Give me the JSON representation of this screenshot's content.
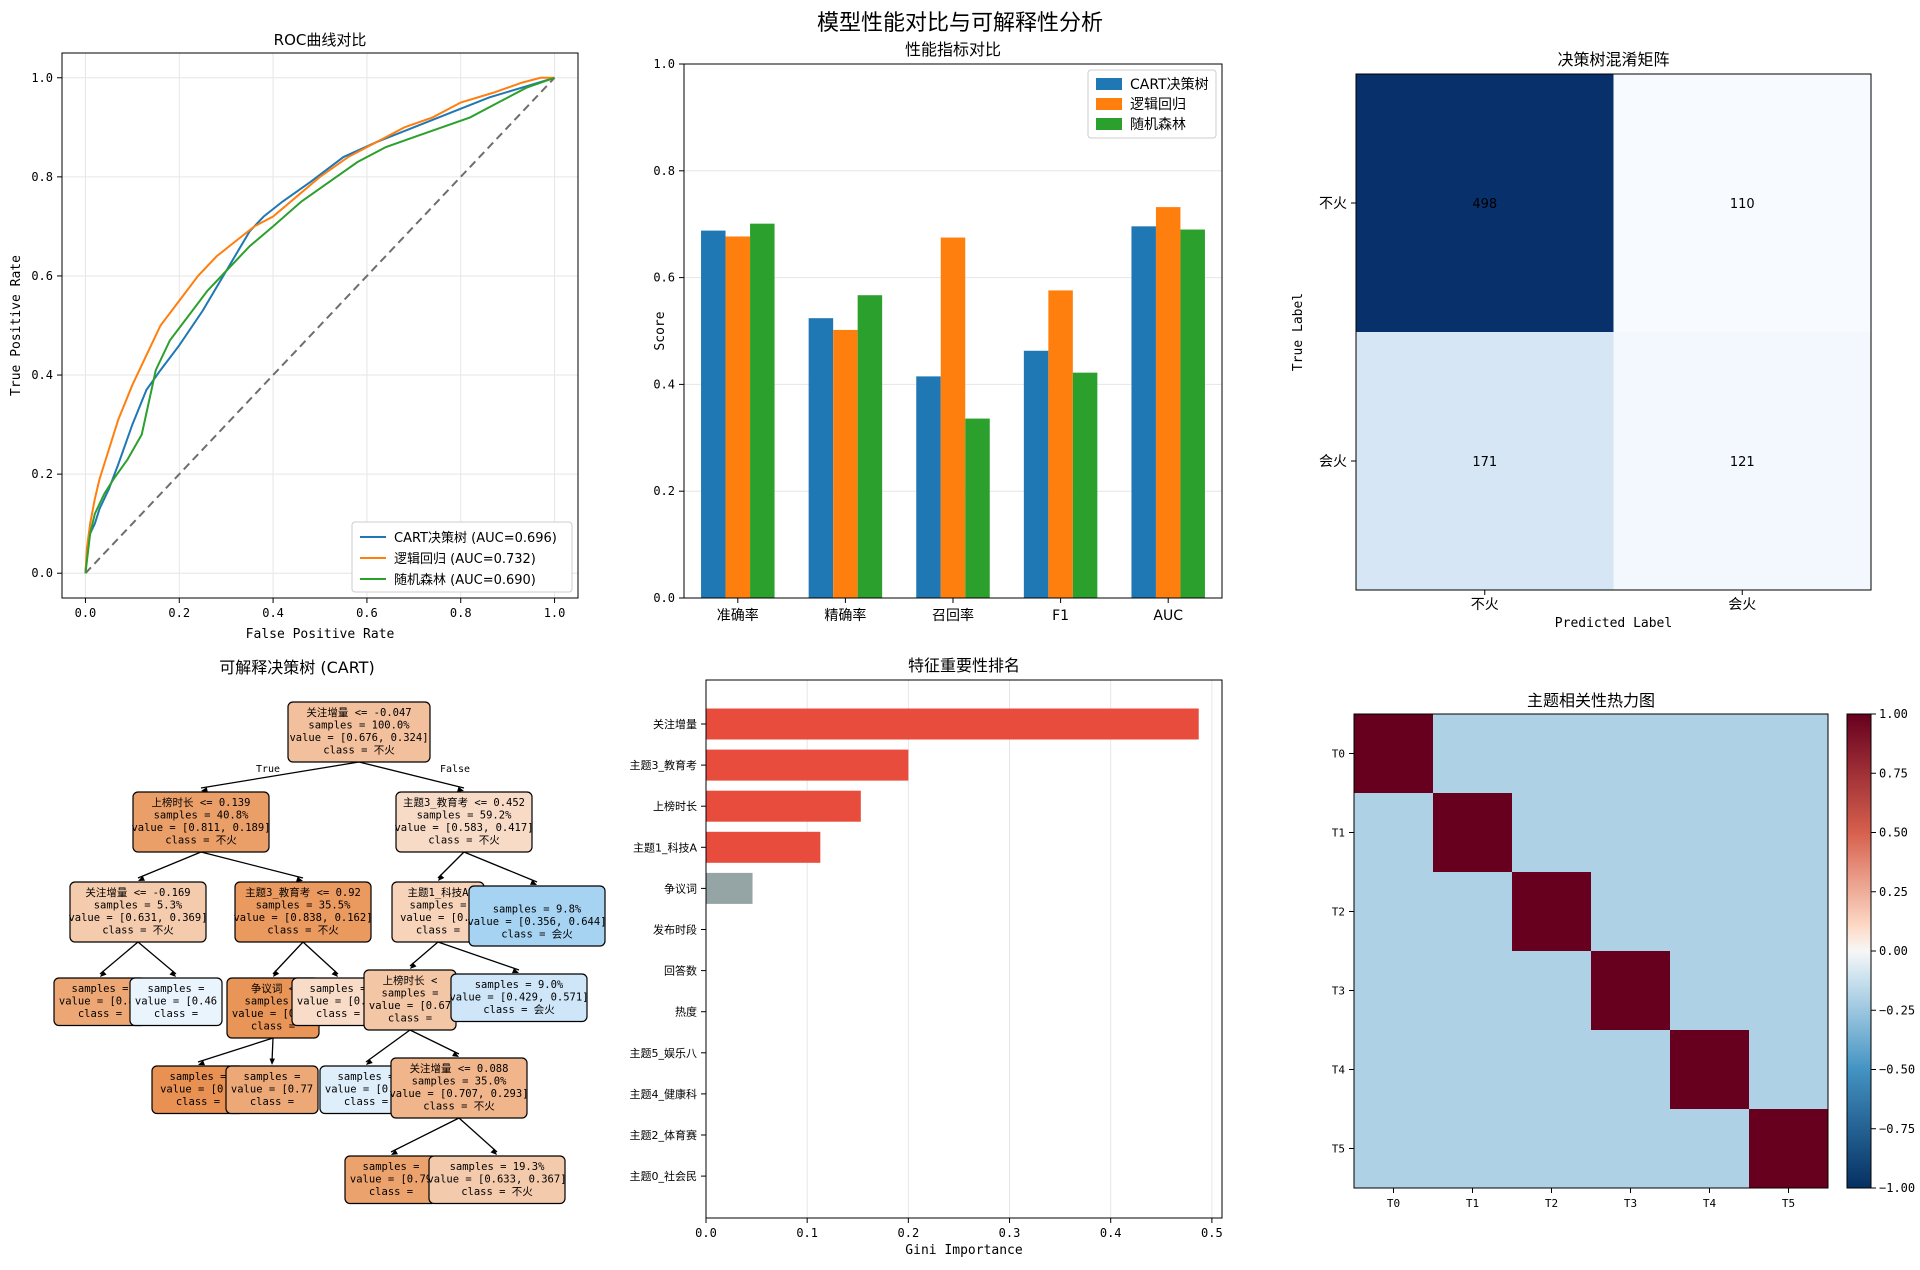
{
  "figure": {
    "suptitle": "模型性能对比与可解释性分析"
  },
  "chart_data": [
    {
      "id": "roc",
      "type": "line",
      "title": "ROC曲线对比",
      "xlabel": "False Positive Rate",
      "ylabel": "True Positive Rate",
      "xlim": [
        -0.05,
        1.05
      ],
      "ylim": [
        -0.05,
        1.05
      ],
      "xticks": [
        "0.0",
        "0.2",
        "0.4",
        "0.6",
        "0.8",
        "1.0"
      ],
      "yticks": [
        "0.0",
        "0.2",
        "0.4",
        "0.6",
        "0.8",
        "1.0"
      ],
      "grid": true,
      "legend_position": "lower-right",
      "series": [
        {
          "name": "CART决策树 (AUC=0.696)",
          "color": "#1f77b4",
          "x": [
            0,
            0.005,
            0.01,
            0.02,
            0.03,
            0.05,
            0.07,
            0.1,
            0.13,
            0.16,
            0.2,
            0.25,
            0.3,
            0.35,
            0.38,
            0.42,
            0.48,
            0.55,
            0.62,
            0.7,
            0.78,
            0.86,
            0.93,
            1.0
          ],
          "y": [
            0,
            0.06,
            0.08,
            0.1,
            0.13,
            0.17,
            0.22,
            0.3,
            0.37,
            0.41,
            0.46,
            0.53,
            0.61,
            0.69,
            0.72,
            0.75,
            0.79,
            0.84,
            0.87,
            0.9,
            0.93,
            0.96,
            0.98,
            1.0
          ]
        },
        {
          "name": "逻辑回归 (AUC=0.732)",
          "color": "#ff7f0e",
          "x": [
            0,
            0.003,
            0.01,
            0.02,
            0.03,
            0.05,
            0.07,
            0.1,
            0.13,
            0.16,
            0.2,
            0.24,
            0.28,
            0.32,
            0.36,
            0.4,
            0.45,
            0.5,
            0.56,
            0.62,
            0.68,
            0.74,
            0.8,
            0.87,
            0.93,
            0.97,
            1.0
          ],
          "y": [
            0,
            0.05,
            0.1,
            0.15,
            0.19,
            0.25,
            0.31,
            0.38,
            0.44,
            0.5,
            0.55,
            0.6,
            0.64,
            0.67,
            0.7,
            0.72,
            0.76,
            0.8,
            0.84,
            0.87,
            0.9,
            0.92,
            0.95,
            0.97,
            0.99,
            1.0,
            1.0
          ]
        },
        {
          "name": "随机森林 (AUC=0.690)",
          "color": "#2ca02c",
          "x": [
            0,
            0.005,
            0.01,
            0.02,
            0.04,
            0.06,
            0.09,
            0.12,
            0.15,
            0.18,
            0.22,
            0.26,
            0.3,
            0.35,
            0.4,
            0.46,
            0.52,
            0.58,
            0.64,
            0.7,
            0.76,
            0.82,
            0.88,
            0.94,
            1.0
          ],
          "y": [
            0,
            0.04,
            0.08,
            0.12,
            0.16,
            0.19,
            0.23,
            0.28,
            0.41,
            0.47,
            0.52,
            0.57,
            0.61,
            0.66,
            0.7,
            0.75,
            0.79,
            0.83,
            0.86,
            0.88,
            0.9,
            0.92,
            0.95,
            0.98,
            1.0
          ]
        }
      ],
      "reference_line": {
        "x": [
          0,
          1
        ],
        "y": [
          0,
          1
        ],
        "style": "dashed",
        "color": "#6e6e6e"
      }
    },
    {
      "id": "metrics",
      "type": "bar",
      "title": "性能指标对比",
      "xlabel": "",
      "ylabel": "Score",
      "ylim": [
        0,
        1.0
      ],
      "yticks": [
        "0.0",
        "0.2",
        "0.4",
        "0.6",
        "0.8",
        "1.0"
      ],
      "grid": true,
      "legend_position": "top-right",
      "categories": [
        "准确率",
        "精确率",
        "召回率",
        "F1",
        "AUC"
      ],
      "series": [
        {
          "name": "CART决策树",
          "color": "#1f77b4",
          "values": [
            0.688,
            0.524,
            0.415,
            0.463,
            0.696
          ]
        },
        {
          "name": "逻辑回归",
          "color": "#ff7f0e",
          "values": [
            0.677,
            0.502,
            0.675,
            0.576,
            0.732
          ]
        },
        {
          "name": "随机森林",
          "color": "#2ca02c",
          "values": [
            0.701,
            0.567,
            0.336,
            0.422,
            0.69
          ]
        }
      ]
    },
    {
      "id": "confusion",
      "type": "heatmap",
      "title": "决策树混淆矩阵",
      "xlabel": "Predicted Label",
      "ylabel": "True Label",
      "x_categories": [
        "不火",
        "会火"
      ],
      "y_categories": [
        "不火",
        "会火"
      ],
      "colormap": "Blues",
      "values": [
        [
          498,
          110
        ],
        [
          171,
          121
        ]
      ]
    },
    {
      "id": "tree",
      "type": "tree",
      "title": "可解释决策树 (CART)",
      "edge_labels": {
        "left": "True",
        "right": "False"
      },
      "nodes": [
        {
          "lines": [
            "关注增量 <= -0.047",
            "samples = 100.0%",
            "value = [0.676, 0.324]",
            "class = 不火"
          ],
          "fill": "#f2c09c"
        },
        {
          "lines": [
            "上榜时长 <= 0.139",
            "samples = 40.8%",
            "value = [0.811, 0.189]",
            "class = 不火"
          ],
          "fill": "#eb9f68"
        },
        {
          "lines": [
            "主题3_教育考 <= 0.452",
            "samples = 59.2%",
            "value = [0.583, 0.417]",
            "class = 不火"
          ],
          "fill": "#f8dbc7"
        },
        {
          "lines": [
            "关注增量 <= -0.169",
            "samples = 5.3%",
            "value = [0.631, 0.369]",
            "class = 不火"
          ],
          "fill": "#f4cbad"
        },
        {
          "lines": [
            "主题3_教育考 <= 0.92",
            "samples = 35.5%",
            "value = [0.838, 0.162]",
            "class = 不火"
          ],
          "fill": "#ea995f"
        },
        {
          "lines": [
            "主题1_科技A",
            "samples =",
            "value = [0.6",
            "class ="
          ],
          "fill": "#f6d3b9"
        },
        {
          "lines": [
            "",
            "samples = 9.8%",
            "value = [0.356, 0.644]",
            "class = 会火"
          ],
          "fill": "#a7d3f3"
        },
        {
          "lines": [
            "samples =",
            "value = [0.81",
            "class ="
          ],
          "fill": "#eda774"
        },
        {
          "lines": [
            "samples =",
            "value = [0.46",
            "class ="
          ],
          "fill": "#eaf4fc"
        },
        {
          "lines": [
            "争议词 <",
            "samples =",
            "value = [0.85",
            "class ="
          ],
          "fill": "#e99558"
        },
        {
          "lines": [
            "samples =",
            "value = [0.59",
            "class ="
          ],
          "fill": "#f8dcc8"
        },
        {
          "lines": [
            "上榜时长 <",
            "samples =",
            "value = [0.67",
            "class ="
          ],
          "fill": "#f3c6a5"
        },
        {
          "lines": [
            "samples = 9.0%",
            "value = [0.429, 0.571]",
            "class = 会火"
          ],
          "fill": "#cee6f8"
        },
        {
          "lines": [
            "samples =",
            "value = [0.8",
            "class ="
          ],
          "fill": "#e89152"
        },
        {
          "lines": [
            "samples =",
            "value = [0.77",
            "class ="
          ],
          "fill": "#eda877"
        },
        {
          "lines": [
            "samples =",
            "value = [0.44",
            "class ="
          ],
          "fill": "#deeefb"
        },
        {
          "lines": [
            "关注增量 <= 0.088",
            "samples = 35.0%",
            "value = [0.707, 0.293]",
            "class = 不火"
          ],
          "fill": "#f0b58b"
        },
        {
          "lines": [
            "samples =",
            "value = [0.79",
            "class ="
          ],
          "fill": "#eca26d"
        },
        {
          "lines": [
            "samples = 19.3%",
            "value = [0.633, 0.367]",
            "class = 不火"
          ],
          "fill": "#f4caac"
        }
      ]
    },
    {
      "id": "importance",
      "type": "bar",
      "orientation": "horizontal",
      "title": "特征重要性排名",
      "xlabel": "Gini Importance",
      "ylabel": "",
      "xlim": [
        0,
        0.51
      ],
      "xticks": [
        "0.0",
        "0.1",
        "0.2",
        "0.3",
        "0.4",
        "0.5"
      ],
      "grid": true,
      "categories": [
        "关注增量",
        "主题3_教育考",
        "上榜时长",
        "主题1_科技A",
        "争议词",
        "发布时段",
        "回答数",
        "热度",
        "主题5_娱乐八",
        "主题4_健康科",
        "主题2_体育赛",
        "主题0_社会民"
      ],
      "values": [
        0.487,
        0.2,
        0.153,
        0.113,
        0.046,
        0,
        0,
        0,
        0,
        0,
        0,
        0
      ],
      "colors": [
        "#e74c3c",
        "#e74c3c",
        "#e74c3c",
        "#e74c3c",
        "#95a5a6",
        "#95a5a6",
        "#95a5a6",
        "#95a5a6",
        "#95a5a6",
        "#95a5a6",
        "#95a5a6",
        "#95a5a6"
      ]
    },
    {
      "id": "corr",
      "type": "heatmap",
      "title": "主题相关性热力图",
      "x_categories": [
        "T0",
        "T1",
        "T2",
        "T3",
        "T4",
        "T5"
      ],
      "y_categories": [
        "T0",
        "T1",
        "T2",
        "T3",
        "T4",
        "T5"
      ],
      "colormap": "RdBu_r",
      "vmin": -1.0,
      "vmax": 1.0,
      "colorbar_ticks": [
        "1.00",
        "0.75",
        "0.50",
        "0.25",
        "0.00",
        "−0.25",
        "−0.50",
        "−0.75",
        "−1.00"
      ],
      "values": [
        [
          1.0,
          -0.2,
          -0.2,
          -0.2,
          -0.2,
          -0.2
        ],
        [
          -0.2,
          1.0,
          -0.2,
          -0.2,
          -0.2,
          -0.2
        ],
        [
          -0.2,
          -0.2,
          1.0,
          -0.2,
          -0.2,
          -0.2
        ],
        [
          -0.2,
          -0.2,
          -0.2,
          1.0,
          -0.2,
          -0.2
        ],
        [
          -0.2,
          -0.2,
          -0.2,
          -0.2,
          1.0,
          -0.2
        ],
        [
          -0.2,
          -0.2,
          -0.2,
          -0.2,
          -0.2,
          1.0
        ]
      ]
    }
  ]
}
